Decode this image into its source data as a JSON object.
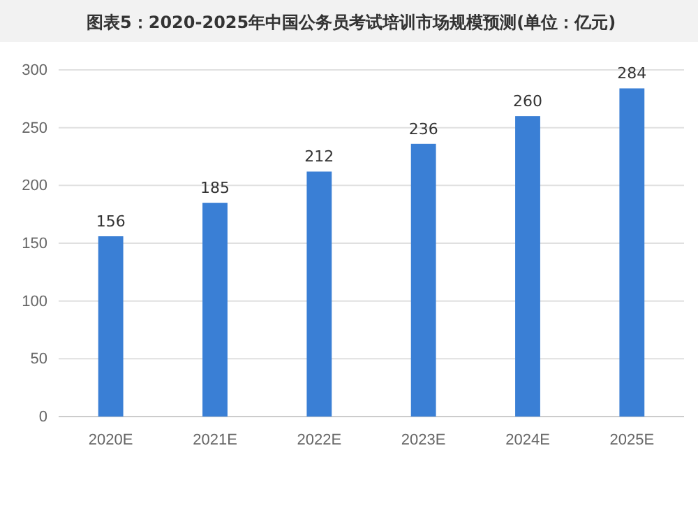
{
  "chart_data": {
    "type": "bar",
    "title": "图表5：2020-2025年中国公务员考试培训市场规模预测(单位：亿元)",
    "categories": [
      "2020E",
      "2021E",
      "2022E",
      "2023E",
      "2024E",
      "2025E"
    ],
    "values": [
      156,
      185,
      212,
      236,
      260,
      284
    ],
    "color": "#3a7fd5",
    "ylim": [
      0,
      300
    ],
    "yticks": [
      0,
      50,
      100,
      150,
      200,
      250,
      300
    ],
    "grid": "y",
    "data_labels": true
  }
}
